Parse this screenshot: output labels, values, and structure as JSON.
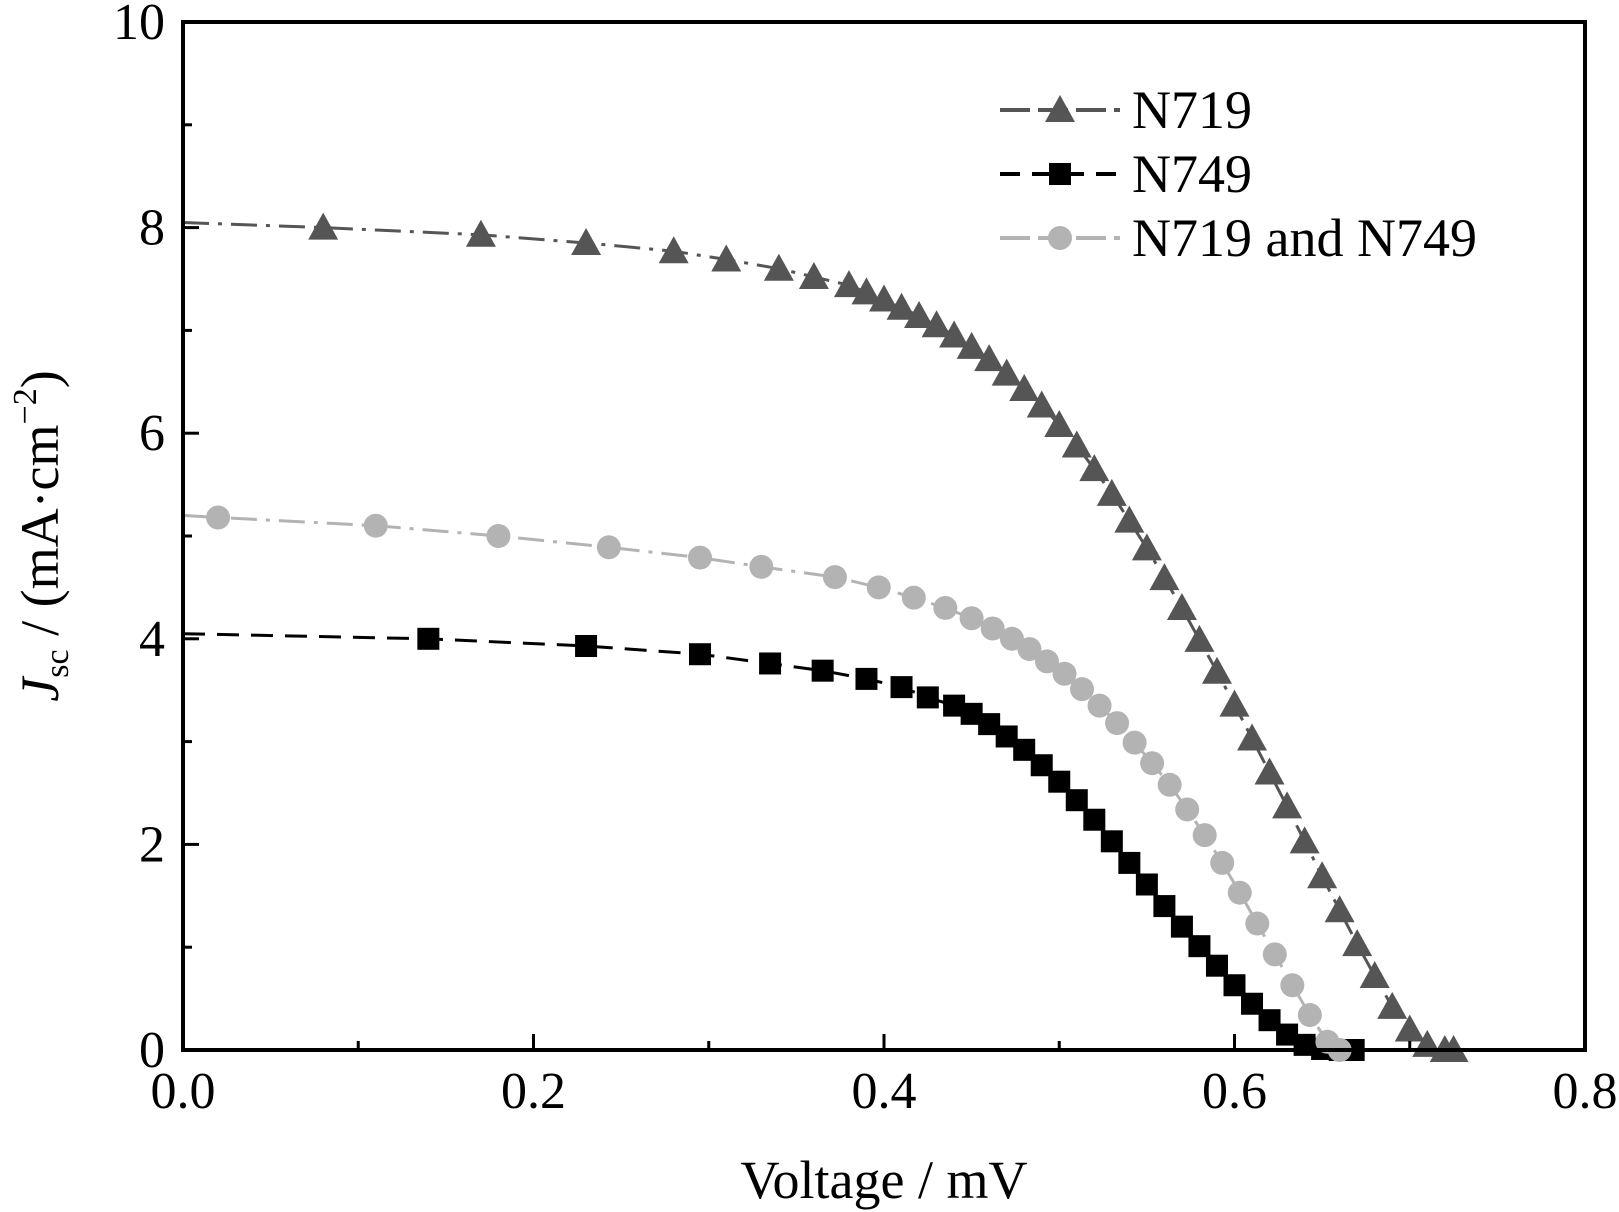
{
  "chart_data": {
    "type": "scatter",
    "xlabel": "Voltage / mV",
    "ylabel": {
      "symbol": "J",
      "subscript": "sc",
      "unit_prefix": " / (mA·cm",
      "unit_exponent": "−2",
      "unit_suffix": ")"
    },
    "xlim": [
      0.0,
      0.8
    ],
    "ylim": [
      0,
      10
    ],
    "x_ticks": [
      "0.0",
      "0.2",
      "0.4",
      "0.6",
      "0.8"
    ],
    "y_ticks": [
      "0",
      "2",
      "4",
      "6",
      "8",
      "10"
    ],
    "grid": false,
    "legend_position": "top-right",
    "series": [
      {
        "name": "N719",
        "color": "#555555",
        "marker": "triangle",
        "line": "dash-dot",
        "x": [
          0.0,
          0.08,
          0.17,
          0.23,
          0.28,
          0.31,
          0.34,
          0.36,
          0.38,
          0.39,
          0.4,
          0.41,
          0.42,
          0.43,
          0.44,
          0.45,
          0.46,
          0.47,
          0.48,
          0.49,
          0.5,
          0.51,
          0.52,
          0.53,
          0.54,
          0.55,
          0.56,
          0.57,
          0.58,
          0.59,
          0.6,
          0.61,
          0.62,
          0.63,
          0.64,
          0.65,
          0.66,
          0.67,
          0.68,
          0.69,
          0.7,
          0.71,
          0.72,
          0.725
        ],
        "y": [
          8.05,
          8.0,
          7.93,
          7.85,
          7.77,
          7.69,
          7.6,
          7.52,
          7.44,
          7.37,
          7.3,
          7.22,
          7.14,
          7.05,
          6.95,
          6.84,
          6.72,
          6.58,
          6.43,
          6.27,
          6.08,
          5.88,
          5.65,
          5.41,
          5.15,
          4.88,
          4.59,
          4.3,
          3.99,
          3.68,
          3.36,
          3.03,
          2.7,
          2.37,
          2.03,
          1.69,
          1.36,
          1.03,
          0.72,
          0.42,
          0.2,
          0.05,
          0.0,
          0.0
        ]
      },
      {
        "name": "N749",
        "color": "#000000",
        "marker": "square",
        "line": "dash",
        "x": [
          0.0,
          0.14,
          0.23,
          0.295,
          0.335,
          0.365,
          0.39,
          0.41,
          0.425,
          0.44,
          0.45,
          0.46,
          0.47,
          0.48,
          0.49,
          0.5,
          0.51,
          0.52,
          0.53,
          0.54,
          0.55,
          0.56,
          0.57,
          0.58,
          0.59,
          0.6,
          0.61,
          0.62,
          0.63,
          0.64,
          0.65,
          0.66,
          0.668
        ],
        "y": [
          4.05,
          4.0,
          3.93,
          3.85,
          3.76,
          3.69,
          3.61,
          3.53,
          3.43,
          3.35,
          3.27,
          3.17,
          3.05,
          2.92,
          2.77,
          2.61,
          2.43,
          2.24,
          2.03,
          1.82,
          1.61,
          1.4,
          1.2,
          1.01,
          0.82,
          0.63,
          0.45,
          0.29,
          0.15,
          0.05,
          0.01,
          0.0,
          0.0
        ]
      },
      {
        "name": "N719 and N749",
        "color": "#b3b3b3",
        "marker": "circle",
        "line": "dash-dot",
        "x": [
          0.0,
          0.02,
          0.11,
          0.18,
          0.243,
          0.295,
          0.33,
          0.372,
          0.397,
          0.417,
          0.435,
          0.45,
          0.462,
          0.473,
          0.483,
          0.493,
          0.503,
          0.513,
          0.523,
          0.533,
          0.543,
          0.553,
          0.563,
          0.573,
          0.583,
          0.593,
          0.603,
          0.613,
          0.623,
          0.633,
          0.643,
          0.653,
          0.66
        ],
        "y": [
          5.2,
          5.18,
          5.1,
          5.0,
          4.89,
          4.79,
          4.7,
          4.6,
          4.5,
          4.4,
          4.3,
          4.2,
          4.1,
          4.0,
          3.9,
          3.78,
          3.66,
          3.51,
          3.35,
          3.18,
          2.99,
          2.79,
          2.58,
          2.34,
          2.09,
          1.82,
          1.53,
          1.23,
          0.93,
          0.63,
          0.34,
          0.08,
          0.0
        ]
      }
    ]
  }
}
